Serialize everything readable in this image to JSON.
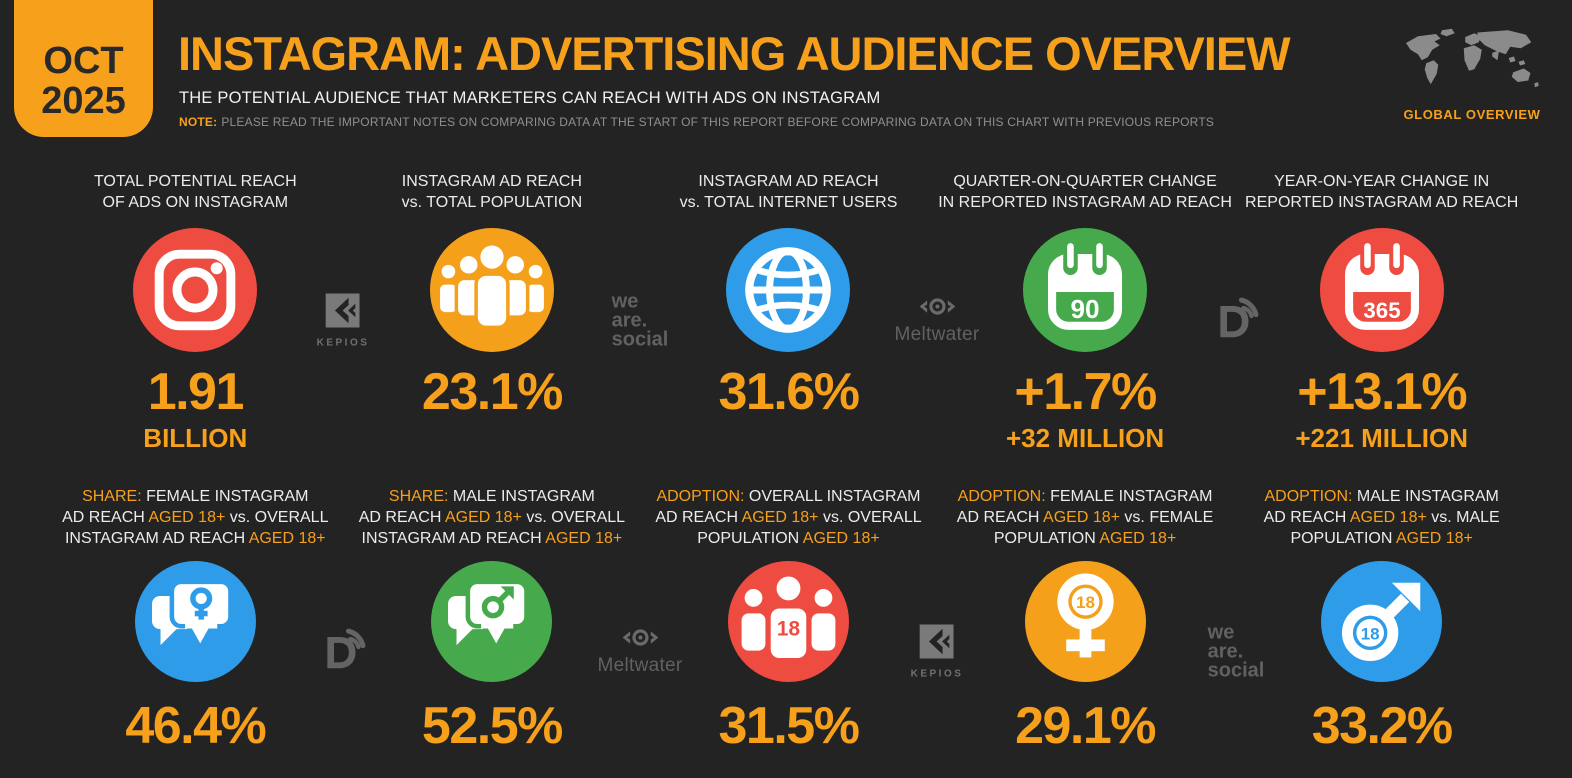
{
  "colors": {
    "bg": "#232323",
    "accent": "#F7A01B",
    "red": "#EE4C41",
    "orange": "#F5A01B",
    "blue": "#2E9CE9",
    "green": "#46AA4D",
    "label_text": "#ECECEC",
    "note_text": "#909090",
    "watermark": "#666666",
    "badge_text": "#292929"
  },
  "header": {
    "date_month": "OCT",
    "date_year": "2025",
    "title": "INSTAGRAM: ADVERTISING AUDIENCE OVERVIEW",
    "subtitle": "THE POTENTIAL AUDIENCE THAT MARKETERS CAN REACH WITH ADS ON INSTAGRAM",
    "note_label": "NOTE:",
    "note_text": "PLEASE READ THE IMPORTANT NOTES ON COMPARING DATA AT THE START OF THIS REPORT BEFORE COMPARING DATA ON THIS CHART WITH PREVIOUS REPORTS",
    "region_label": "GLOBAL OVERVIEW"
  },
  "watermarks": {
    "kepios_label": "KEPIOS",
    "we_are_social_lines": [
      "we",
      "are.",
      "social"
    ],
    "meltwater_label": "Meltwater",
    "row1": [
      "kepios",
      "we-are-social",
      "meltwater",
      "datareportal"
    ],
    "row2": [
      "datareportal",
      "meltwater",
      "kepios",
      "we-are-social"
    ]
  },
  "chart_data": {
    "type": "table",
    "title": "INSTAGRAM: ADVERTISING AUDIENCE OVERVIEW",
    "subtitle": "THE POTENTIAL AUDIENCE THAT MARKETERS CAN REACH WITH ADS ON INSTAGRAM",
    "rows": [
      {
        "stats": [
          {
            "icon": "instagram",
            "color": "red",
            "value": "1.91",
            "sub_value": "BILLION",
            "metric": "TOTAL POTENTIAL REACH OF ADS ON INSTAGRAM",
            "label_lines": [
              [
                {
                  "t": "TOTAL POTENTIAL REACH",
                  "hl": false
                }
              ],
              [
                {
                  "t": "OF ADS ON INSTAGRAM",
                  "hl": false
                }
              ]
            ]
          },
          {
            "icon": "people",
            "color": "orange",
            "value": "23.1%",
            "sub_value": "",
            "metric": "INSTAGRAM AD REACH vs. TOTAL POPULATION",
            "label_lines": [
              [
                {
                  "t": "INSTAGRAM AD REACH",
                  "hl": false
                }
              ],
              [
                {
                  "t": "vs. TOTAL POPULATION",
                  "hl": false
                }
              ]
            ]
          },
          {
            "icon": "globe",
            "color": "blue",
            "value": "31.6%",
            "sub_value": "",
            "metric": "INSTAGRAM AD REACH vs. TOTAL INTERNET USERS",
            "label_lines": [
              [
                {
                  "t": "INSTAGRAM AD REACH",
                  "hl": false
                }
              ],
              [
                {
                  "t": "vs. TOTAL INTERNET USERS",
                  "hl": false
                }
              ]
            ]
          },
          {
            "icon": "calendar",
            "icon_text": "90",
            "color": "green",
            "value": "+1.7%",
            "sub_value": "+32 MILLION",
            "metric": "QUARTER-ON-QUARTER CHANGE IN REPORTED INSTAGRAM AD REACH",
            "label_lines": [
              [
                {
                  "t": "QUARTER-ON-QUARTER CHANGE",
                  "hl": false
                }
              ],
              [
                {
                  "t": "IN REPORTED INSTAGRAM AD REACH",
                  "hl": false
                }
              ]
            ]
          },
          {
            "icon": "calendar",
            "icon_text": "365",
            "color": "red",
            "value": "+13.1%",
            "sub_value": "+221 MILLION",
            "metric": "YEAR-ON-YEAR CHANGE IN REPORTED INSTAGRAM AD REACH",
            "label_lines": [
              [
                {
                  "t": "YEAR-ON-YEAR CHANGE IN",
                  "hl": false
                }
              ],
              [
                {
                  "t": "REPORTED INSTAGRAM AD REACH",
                  "hl": false
                }
              ]
            ]
          }
        ]
      },
      {
        "stats": [
          {
            "icon": "chat-female",
            "color": "blue",
            "value": "46.4%",
            "sub_value": "",
            "metric": "SHARE: FEMALE INSTAGRAM AD REACH AGED 18+ vs. OVERALL INSTAGRAM AD REACH AGED 18+",
            "label_lines": [
              [
                {
                  "t": "SHARE:",
                  "hl": true
                },
                {
                  "t": " FEMALE INSTAGRAM",
                  "hl": false
                }
              ],
              [
                {
                  "t": "AD REACH ",
                  "hl": false
                },
                {
                  "t": "AGED 18+",
                  "hl": true
                },
                {
                  "t": " vs. OVERALL",
                  "hl": false
                }
              ],
              [
                {
                  "t": "INSTAGRAM AD REACH ",
                  "hl": false
                },
                {
                  "t": "AGED 18+",
                  "hl": true
                }
              ]
            ]
          },
          {
            "icon": "chat-male",
            "color": "green",
            "value": "52.5%",
            "sub_value": "",
            "metric": "SHARE: MALE INSTAGRAM AD REACH AGED 18+ vs. OVERALL INSTAGRAM AD REACH AGED 18+",
            "label_lines": [
              [
                {
                  "t": "SHARE:",
                  "hl": true
                },
                {
                  "t": " MALE INSTAGRAM",
                  "hl": false
                }
              ],
              [
                {
                  "t": "AD REACH ",
                  "hl": false
                },
                {
                  "t": "AGED 18+",
                  "hl": true
                },
                {
                  "t": " vs. OVERALL",
                  "hl": false
                }
              ],
              [
                {
                  "t": "INSTAGRAM AD REACH ",
                  "hl": false
                },
                {
                  "t": "AGED 18+",
                  "hl": true
                }
              ]
            ]
          },
          {
            "icon": "people-18",
            "icon_text": "18",
            "color": "red",
            "value": "31.5%",
            "sub_value": "",
            "metric": "ADOPTION: OVERALL INSTAGRAM AD REACH AGED 18+ vs. OVERALL POPULATION AGED 18+",
            "label_lines": [
              [
                {
                  "t": "ADOPTION:",
                  "hl": true
                },
                {
                  "t": " OVERALL INSTAGRAM",
                  "hl": false
                }
              ],
              [
                {
                  "t": "AD REACH ",
                  "hl": false
                },
                {
                  "t": "AGED 18+",
                  "hl": true
                },
                {
                  "t": " vs. OVERALL",
                  "hl": false
                }
              ],
              [
                {
                  "t": "POPULATION ",
                  "hl": false
                },
                {
                  "t": "AGED 18+",
                  "hl": true
                }
              ]
            ]
          },
          {
            "icon": "female-18",
            "icon_text": "18",
            "color": "orange",
            "value": "29.1%",
            "sub_value": "",
            "metric": "ADOPTION: FEMALE INSTAGRAM AD REACH AGED 18+ vs. FEMALE POPULATION AGED 18+",
            "label_lines": [
              [
                {
                  "t": "ADOPTION:",
                  "hl": true
                },
                {
                  "t": " FEMALE INSTAGRAM",
                  "hl": false
                }
              ],
              [
                {
                  "t": "AD REACH ",
                  "hl": false
                },
                {
                  "t": "AGED 18+",
                  "hl": true
                },
                {
                  "t": " vs. FEMALE",
                  "hl": false
                }
              ],
              [
                {
                  "t": "POPULATION ",
                  "hl": false
                },
                {
                  "t": "AGED 18+",
                  "hl": true
                }
              ]
            ]
          },
          {
            "icon": "male-18",
            "icon_text": "18",
            "color": "blue",
            "value": "33.2%",
            "sub_value": "",
            "metric": "ADOPTION: MALE INSTAGRAM AD REACH AGED 18+ vs. MALE POPULATION AGED 18+",
            "label_lines": [
              [
                {
                  "t": "ADOPTION:",
                  "hl": true
                },
                {
                  "t": " MALE INSTAGRAM",
                  "hl": false
                }
              ],
              [
                {
                  "t": "AD REACH ",
                  "hl": false
                },
                {
                  "t": "AGED 18+",
                  "hl": true
                },
                {
                  "t": " vs. MALE",
                  "hl": false
                }
              ],
              [
                {
                  "t": "POPULATION ",
                  "hl": false
                },
                {
                  "t": "AGED 18+",
                  "hl": true
                }
              ]
            ]
          }
        ]
      }
    ]
  }
}
